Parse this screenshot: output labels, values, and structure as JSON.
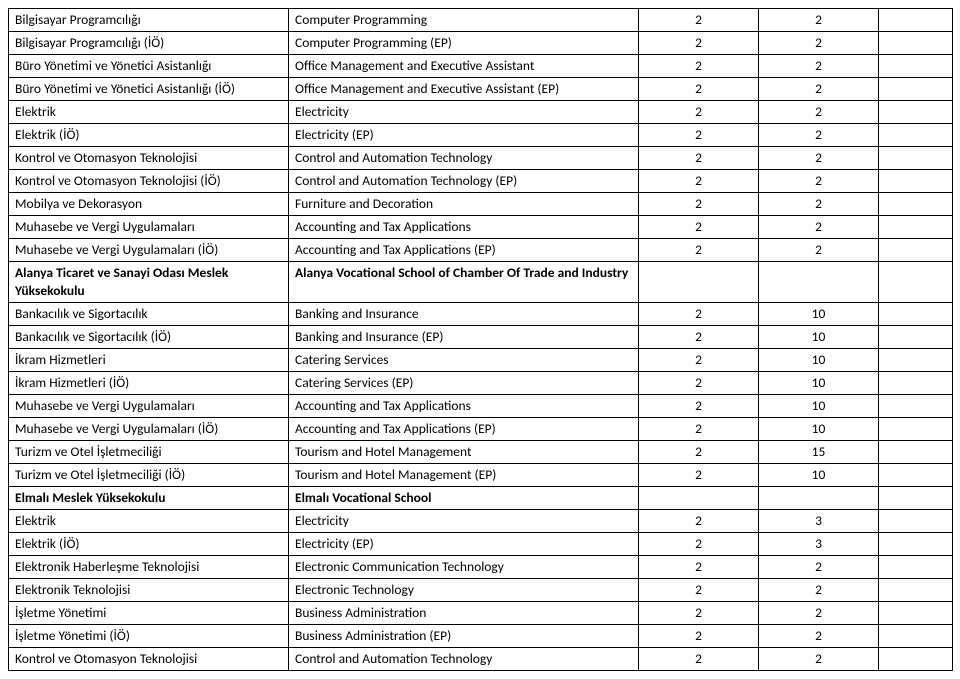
{
  "cols": {
    "w1": 280,
    "w2": 350,
    "w3": 120,
    "w4": 120,
    "w5": 74
  },
  "rows": [
    {
      "c1": "Bilgisayar Programcılığı",
      "c2": "Computer Programming",
      "c3": "2",
      "c4": "2",
      "c5": ""
    },
    {
      "c1": "Bilgisayar Programcılığı (İÖ)",
      "c2": "Computer Programming (EP)",
      "c3": "2",
      "c4": "2",
      "c5": ""
    },
    {
      "c1": "Büro Yönetimi ve Yönetici Asistanlığı",
      "c2": "Office Management and Executive Assistant",
      "c3": "2",
      "c4": "2",
      "c5": ""
    },
    {
      "c1": "Büro Yönetimi ve Yönetici Asistanlığı (İÖ)",
      "c2": "Office Management and Executive Assistant (EP)",
      "c3": "2",
      "c4": "2",
      "c5": ""
    },
    {
      "c1": "Elektrik",
      "c2": "Electricity",
      "c3": "2",
      "c4": "2",
      "c5": ""
    },
    {
      "c1": "Elektrik (İÖ)",
      "c2": "Electricity (EP)",
      "c3": "2",
      "c4": "2",
      "c5": ""
    },
    {
      "c1": "Kontrol ve Otomasyon Teknolojisi",
      "c2": "Control and Automation Technology",
      "c3": "2",
      "c4": "2",
      "c5": ""
    },
    {
      "c1": "Kontrol ve Otomasyon Teknolojisi (İÖ)",
      "c2": "Control and Automation Technology (EP)",
      "c3": "2",
      "c4": "2",
      "c5": ""
    },
    {
      "c1": "Mobilya ve Dekorasyon",
      "c2": "Furniture and Decoration",
      "c3": "2",
      "c4": "2",
      "c5": ""
    },
    {
      "c1": "Muhasebe ve Vergi Uygulamaları",
      "c2": "Accounting and Tax Applications",
      "c3": "2",
      "c4": "2",
      "c5": ""
    },
    {
      "c1": "Muhasebe ve Vergi Uygulamaları (İÖ)",
      "c2": "Accounting and Tax Applications (EP)",
      "c3": "2",
      "c4": "2",
      "c5": ""
    },
    {
      "c1": "Alanya Ticaret ve Sanayi Odası Meslek Yüksekokulu",
      "c2": "Alanya Vocational School of Chamber Of Trade and Industry",
      "c3": "",
      "c4": "",
      "c5": "",
      "bold": true,
      "tall": true
    },
    {
      "c1": "Bankacılık ve Sigortacılık",
      "c2": "Banking and Insurance",
      "c3": "2",
      "c4": "10",
      "c5": ""
    },
    {
      "c1": "Bankacılık ve Sigortacılık (İÖ)",
      "c2": "Banking and Insurance (EP)",
      "c3": "2",
      "c4": "10",
      "c5": ""
    },
    {
      "c1": "İkram Hizmetleri",
      "c2": "Catering Services",
      "c3": "2",
      "c4": "10",
      "c5": ""
    },
    {
      "c1": "İkram Hizmetleri (İÖ)",
      "c2": "Catering Services (EP)",
      "c3": "2",
      "c4": "10",
      "c5": ""
    },
    {
      "c1": "Muhasebe ve Vergi Uygulamaları",
      "c2": "Accounting and Tax Applications",
      "c3": "2",
      "c4": "10",
      "c5": ""
    },
    {
      "c1": "Muhasebe ve Vergi Uygulamaları (İÖ)",
      "c2": "Accounting and Tax Applications (EP)",
      "c3": "2",
      "c4": "10",
      "c5": ""
    },
    {
      "c1": "Turizm ve Otel İşletmeciliği",
      "c2": "Tourism and Hotel Management",
      "c3": "2",
      "c4": "15",
      "c5": ""
    },
    {
      "c1": "Turizm ve Otel İşletmeciliği (İÖ)",
      "c2": "Tourism and Hotel Management (EP)",
      "c3": "2",
      "c4": "10",
      "c5": ""
    },
    {
      "c1": "Elmalı Meslek Yüksekokulu",
      "c2": "Elmalı Vocational School",
      "c3": "",
      "c4": "",
      "c5": "",
      "bold": true
    },
    {
      "c1": "Elektrik",
      "c2": "Electricity",
      "c3": "2",
      "c4": "3",
      "c5": ""
    },
    {
      "c1": "Elektrik (İÖ)",
      "c2": "Electricity (EP)",
      "c3": "2",
      "c4": "3",
      "c5": ""
    },
    {
      "c1": "Elektronik Haberleşme Teknolojisi",
      "c2": "Electronic Communication Technology",
      "c3": "2",
      "c4": "2",
      "c5": ""
    },
    {
      "c1": "Elektronik Teknolojisi",
      "c2": "Electronic Technology",
      "c3": "2",
      "c4": "2",
      "c5": ""
    },
    {
      "c1": "İşletme Yönetimi",
      "c2": "Business Administration",
      "c3": "2",
      "c4": "2",
      "c5": ""
    },
    {
      "c1": "İşletme Yönetimi (İÖ)",
      "c2": "Business Administration (EP)",
      "c3": "2",
      "c4": "2",
      "c5": ""
    },
    {
      "c1": "Kontrol ve Otomasyon Teknolojisi",
      "c2": "Control and Automation Technology",
      "c3": "2",
      "c4": "2",
      "c5": ""
    }
  ]
}
